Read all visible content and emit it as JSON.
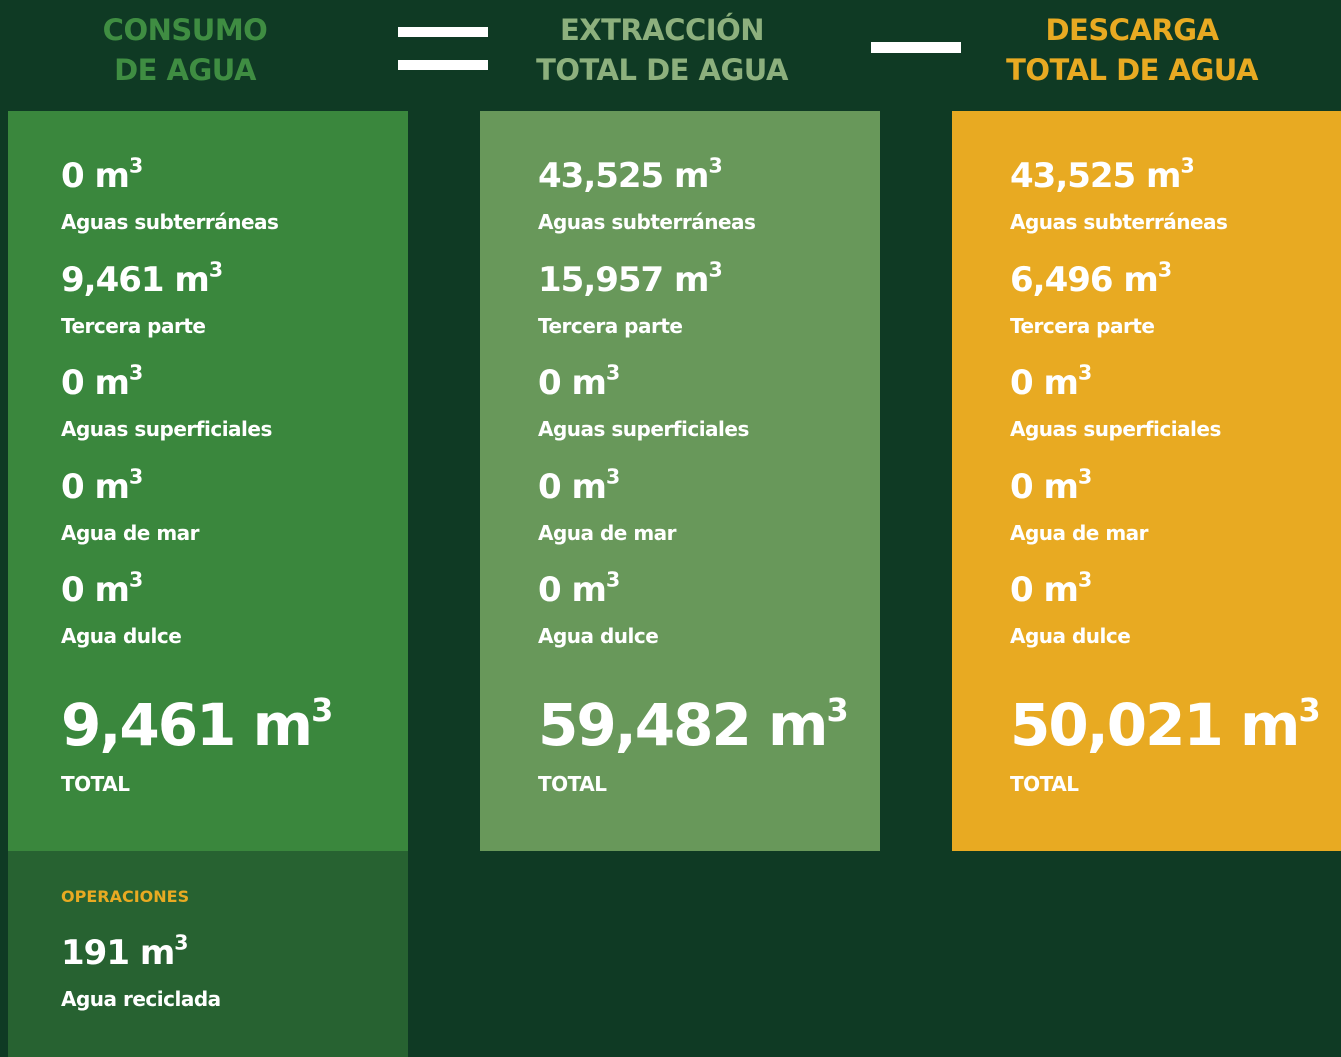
{
  "unit": "m",
  "unit_exp": "3",
  "operators": [
    "=",
    "−"
  ],
  "columns": [
    {
      "title": [
        "CONSUMO",
        "DE AGUA"
      ],
      "items": [
        {
          "value": "0",
          "label": "Aguas subterráneas"
        },
        {
          "value": "9,461",
          "label": "Tercera parte"
        },
        {
          "value": "0",
          "label": "Aguas superficiales"
        },
        {
          "value": "0",
          "label": "Agua de mar"
        },
        {
          "value": "0",
          "label": "Agua dulce"
        }
      ],
      "total": {
        "value": "9,461",
        "label": "TOTAL"
      }
    },
    {
      "title": [
        "EXTRACCIÓN",
        "TOTAL DE AGUA"
      ],
      "items": [
        {
          "value": "43,525",
          "label": "Aguas subterráneas"
        },
        {
          "value": "15,957",
          "label": "Tercera parte"
        },
        {
          "value": "0",
          "label": "Aguas superficiales"
        },
        {
          "value": "0",
          "label": "Agua de mar"
        },
        {
          "value": "0",
          "label": "Agua dulce"
        }
      ],
      "total": {
        "value": "59,482",
        "label": "TOTAL"
      }
    },
    {
      "title": [
        "DESCARGA",
        "TOTAL DE AGUA"
      ],
      "items": [
        {
          "value": "43,525",
          "label": "Aguas subterráneas"
        },
        {
          "value": "6,496",
          "label": "Tercera parte"
        },
        {
          "value": "0",
          "label": "Aguas superficiales"
        },
        {
          "value": "0",
          "label": "Agua de mar"
        },
        {
          "value": "0",
          "label": "Agua dulce"
        }
      ],
      "total": {
        "value": "50,021",
        "label": "TOTAL"
      }
    }
  ],
  "operations": {
    "title": "OPERACIONES",
    "value": "191",
    "label": "Agua reciclada"
  }
}
